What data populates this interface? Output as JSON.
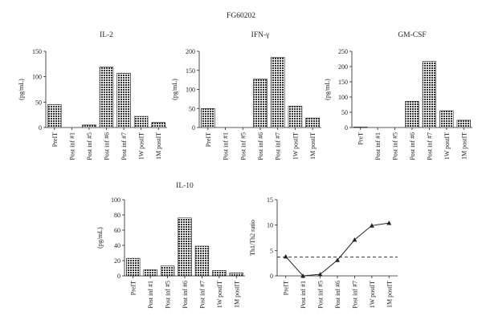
{
  "figure_title": "FG60202",
  "hatch_color": "#333333",
  "chart_data": [
    {
      "type": "bar",
      "title": "IL-2",
      "ylabel": "(pg/mL)",
      "ylim": [
        0,
        150
      ],
      "yticks": [
        0,
        50,
        100,
        150
      ],
      "categories": [
        "PreIT",
        "Post inf #1",
        "Post inf #5",
        "Post inf #6",
        "Post inf #7",
        "1W postIT",
        "1M postIT"
      ],
      "values": [
        45,
        0,
        5,
        119,
        107,
        22,
        10
      ]
    },
    {
      "type": "bar",
      "title": "IFN-γ",
      "ylabel": "(pg/mL)",
      "ylim": [
        0,
        200
      ],
      "yticks": [
        0,
        50,
        100,
        150,
        200
      ],
      "categories": [
        "PreIT",
        "Post inf #1",
        "Post inf #5",
        "Post inf #6",
        "Post inf #7",
        "1W postIT",
        "1M postIT"
      ],
      "values": [
        50,
        0,
        0,
        127,
        184,
        56,
        25
      ]
    },
    {
      "type": "bar",
      "title": "GM-CSF",
      "ylabel": "(pg/mL)",
      "ylim": [
        0,
        250
      ],
      "yticks": [
        0,
        50,
        100,
        150,
        200,
        250
      ],
      "categories": [
        "PreT",
        "Post inf #1",
        "Post inf #5",
        "Post inf #6",
        "Post inf #7",
        "1W postIT",
        "1M postIT"
      ],
      "values": [
        2,
        0,
        0,
        86,
        217,
        55,
        24
      ]
    },
    {
      "type": "bar",
      "title": "IL-10",
      "ylabel": "(pg/mL)",
      "ylim": [
        0,
        100
      ],
      "yticks": [
        0,
        20,
        40,
        60,
        80,
        100
      ],
      "categories": [
        "PreIT",
        "Post inf #1",
        "Post inf #5",
        "Post inf #6",
        "Post inf #7",
        "1W postIT",
        "1M postIT"
      ],
      "values": [
        23,
        8,
        13,
        76,
        39,
        7,
        4
      ]
    },
    {
      "type": "line",
      "title": "",
      "ylabel": "Th1/Th2 ratio",
      "ylim": [
        0,
        15
      ],
      "yticks": [
        0,
        5,
        10,
        15
      ],
      "categories": [
        "PreIT",
        "Post inf #1",
        "Post inf #5",
        "Post inf #6",
        "Post inf #7",
        "1W postIT",
        "1M postIT"
      ],
      "values": [
        3.8,
        0,
        0.3,
        3.1,
        7.1,
        9.9,
        10.4
      ],
      "reference_line": 3.7,
      "reference_style": "dashed"
    }
  ]
}
